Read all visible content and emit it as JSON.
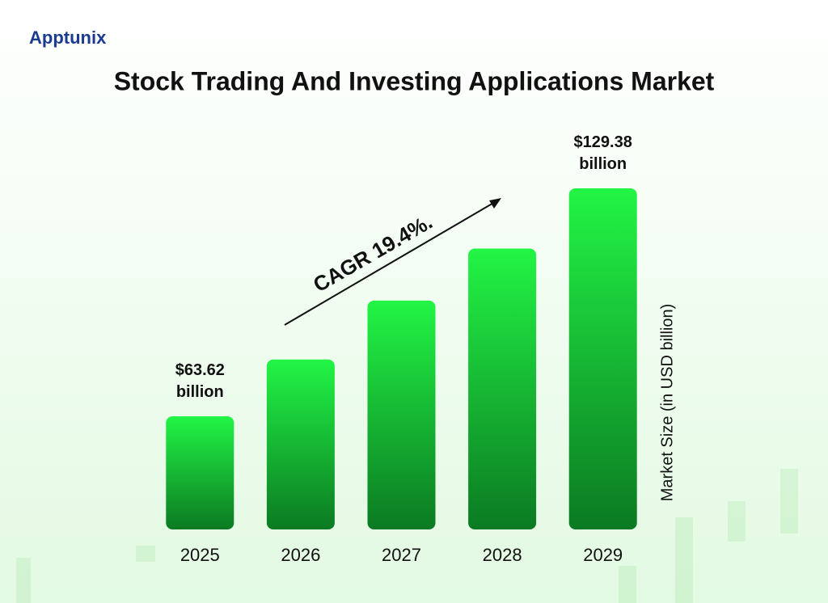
{
  "logo": "Apptunix",
  "chart_data": {
    "type": "bar",
    "title": "Stock Trading And Investing Applications Market",
    "y_label": "Market Size (in USD billion)",
    "annotation": "CAGR 19.4%.",
    "categories": [
      "2025",
      "2026",
      "2027",
      "2028",
      "2029"
    ],
    "values": [
      63.62,
      80,
      97,
      112,
      129.38
    ],
    "value_labels": [
      "$63.62\nbillion",
      null,
      null,
      null,
      "$129.38\nbillion"
    ],
    "color": "#22f545",
    "ylim": [
      31,
      131
    ]
  }
}
